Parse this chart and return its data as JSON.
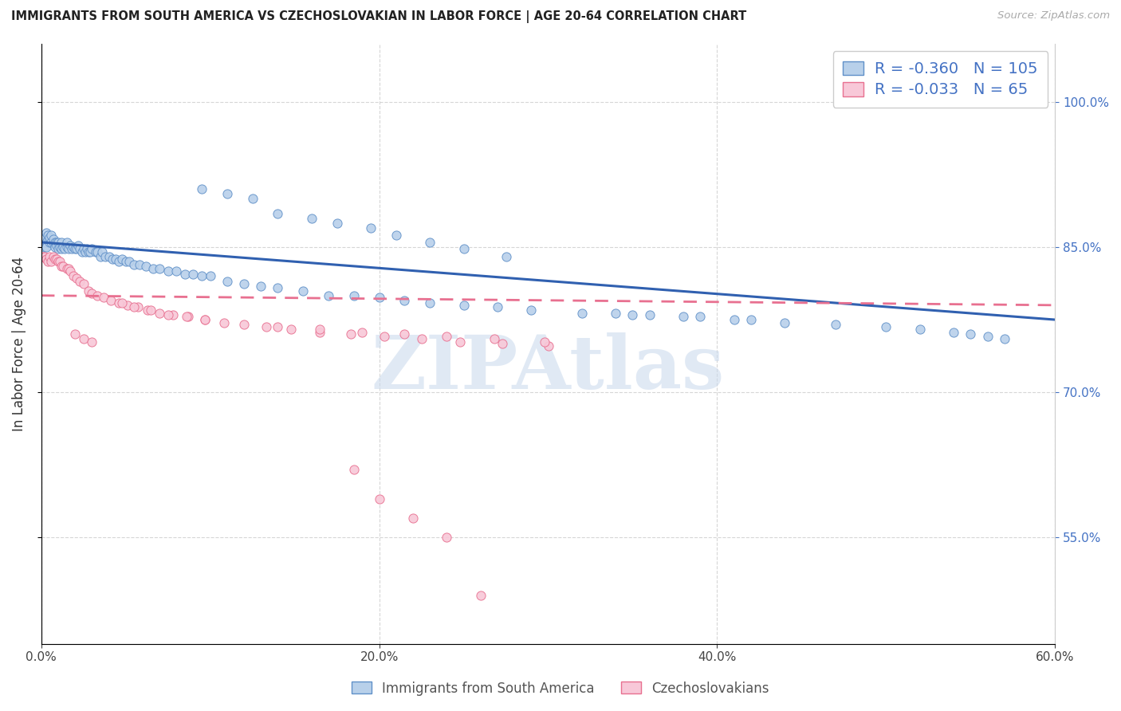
{
  "title": "IMMIGRANTS FROM SOUTH AMERICA VS CZECHOSLOVAKIAN IN LABOR FORCE | AGE 20-64 CORRELATION CHART",
  "source": "Source: ZipAtlas.com",
  "ylabel": "In Labor Force | Age 20-64",
  "xlim": [
    0.0,
    0.6
  ],
  "ylim": [
    0.44,
    1.06
  ],
  "xtick_values": [
    0.0,
    0.2,
    0.4,
    0.6
  ],
  "ytick_values": [
    0.55,
    0.7,
    0.85,
    1.0
  ],
  "blue_R": -0.36,
  "blue_N": 105,
  "pink_R": -0.033,
  "pink_N": 65,
  "blue_scatter_color": "#b8d0ea",
  "blue_edge_color": "#6090c8",
  "pink_scatter_color": "#f8c8d8",
  "pink_edge_color": "#e87090",
  "blue_line_color": "#3060b0",
  "pink_line_color": "#e87090",
  "right_axis_color": "#4472c4",
  "watermark_color": "#c8d8ec",
  "watermark_text": "ZIPAtlas",
  "legend_text_color": "#4472c4",
  "blue_x": [
    0.001,
    0.002,
    0.002,
    0.003,
    0.003,
    0.003,
    0.004,
    0.004,
    0.005,
    0.005,
    0.006,
    0.006,
    0.007,
    0.007,
    0.008,
    0.008,
    0.009,
    0.009,
    0.01,
    0.01,
    0.011,
    0.012,
    0.012,
    0.013,
    0.014,
    0.015,
    0.015,
    0.016,
    0.017,
    0.018,
    0.019,
    0.02,
    0.021,
    0.022,
    0.023,
    0.024,
    0.025,
    0.026,
    0.027,
    0.028,
    0.029,
    0.03,
    0.032,
    0.033,
    0.035,
    0.036,
    0.038,
    0.04,
    0.042,
    0.044,
    0.046,
    0.048,
    0.05,
    0.052,
    0.055,
    0.058,
    0.062,
    0.066,
    0.07,
    0.075,
    0.08,
    0.085,
    0.09,
    0.095,
    0.1,
    0.11,
    0.12,
    0.13,
    0.14,
    0.155,
    0.17,
    0.185,
    0.2,
    0.215,
    0.23,
    0.25,
    0.27,
    0.29,
    0.32,
    0.35,
    0.38,
    0.41,
    0.44,
    0.47,
    0.5,
    0.52,
    0.54,
    0.55,
    0.56,
    0.57,
    0.34,
    0.36,
    0.39,
    0.42,
    0.095,
    0.11,
    0.125,
    0.14,
    0.16,
    0.175,
    0.195,
    0.21,
    0.23,
    0.25,
    0.275
  ],
  "blue_y": [
    0.855,
    0.85,
    0.86,
    0.855,
    0.85,
    0.865,
    0.858,
    0.862,
    0.855,
    0.86,
    0.855,
    0.862,
    0.855,
    0.858,
    0.855,
    0.85,
    0.855,
    0.852,
    0.855,
    0.848,
    0.85,
    0.848,
    0.855,
    0.85,
    0.848,
    0.85,
    0.855,
    0.848,
    0.852,
    0.848,
    0.85,
    0.848,
    0.848,
    0.852,
    0.848,
    0.845,
    0.848,
    0.845,
    0.848,
    0.845,
    0.845,
    0.848,
    0.845,
    0.845,
    0.84,
    0.845,
    0.84,
    0.84,
    0.838,
    0.838,
    0.835,
    0.838,
    0.835,
    0.835,
    0.832,
    0.832,
    0.83,
    0.828,
    0.828,
    0.825,
    0.825,
    0.822,
    0.822,
    0.82,
    0.82,
    0.815,
    0.812,
    0.81,
    0.808,
    0.805,
    0.8,
    0.8,
    0.798,
    0.795,
    0.792,
    0.79,
    0.788,
    0.785,
    0.782,
    0.78,
    0.778,
    0.775,
    0.772,
    0.77,
    0.768,
    0.765,
    0.762,
    0.76,
    0.758,
    0.755,
    0.782,
    0.78,
    0.778,
    0.775,
    0.91,
    0.905,
    0.9,
    0.885,
    0.88,
    0.875,
    0.87,
    0.862,
    0.855,
    0.848,
    0.84
  ],
  "pink_x": [
    0.001,
    0.002,
    0.003,
    0.004,
    0.005,
    0.006,
    0.007,
    0.008,
    0.009,
    0.01,
    0.011,
    0.012,
    0.013,
    0.015,
    0.016,
    0.017,
    0.019,
    0.021,
    0.023,
    0.025,
    0.028,
    0.03,
    0.033,
    0.037,
    0.041,
    0.046,
    0.051,
    0.057,
    0.063,
    0.07,
    0.078,
    0.087,
    0.097,
    0.108,
    0.12,
    0.133,
    0.148,
    0.165,
    0.183,
    0.203,
    0.225,
    0.248,
    0.273,
    0.3,
    0.048,
    0.055,
    0.065,
    0.075,
    0.086,
    0.097,
    0.02,
    0.025,
    0.03,
    0.14,
    0.165,
    0.19,
    0.215,
    0.24,
    0.268,
    0.298,
    0.185,
    0.2,
    0.22,
    0.24,
    0.26
  ],
  "pink_y": [
    0.84,
    0.84,
    0.838,
    0.835,
    0.84,
    0.835,
    0.84,
    0.838,
    0.838,
    0.835,
    0.835,
    0.83,
    0.83,
    0.828,
    0.828,
    0.825,
    0.82,
    0.818,
    0.815,
    0.812,
    0.805,
    0.802,
    0.8,
    0.798,
    0.795,
    0.792,
    0.79,
    0.788,
    0.785,
    0.782,
    0.78,
    0.778,
    0.775,
    0.772,
    0.77,
    0.768,
    0.765,
    0.762,
    0.76,
    0.758,
    0.755,
    0.752,
    0.75,
    0.748,
    0.792,
    0.788,
    0.785,
    0.78,
    0.778,
    0.775,
    0.76,
    0.755,
    0.752,
    0.768,
    0.765,
    0.762,
    0.76,
    0.758,
    0.755,
    0.752,
    0.62,
    0.59,
    0.57,
    0.55,
    0.49
  ]
}
